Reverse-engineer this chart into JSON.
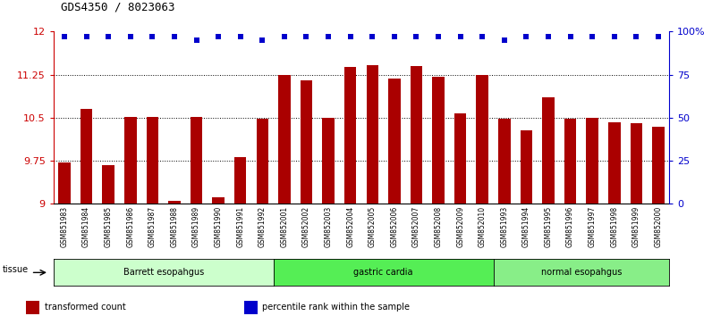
{
  "title": "GDS4350 / 8023063",
  "samples": [
    "GSM851983",
    "GSM851984",
    "GSM851985",
    "GSM851986",
    "GSM851987",
    "GSM851988",
    "GSM851989",
    "GSM851990",
    "GSM851991",
    "GSM851992",
    "GSM852001",
    "GSM852002",
    "GSM852003",
    "GSM852004",
    "GSM852005",
    "GSM852006",
    "GSM852007",
    "GSM852008",
    "GSM852009",
    "GSM852010",
    "GSM851993",
    "GSM851994",
    "GSM851995",
    "GSM851996",
    "GSM851997",
    "GSM851998",
    "GSM851999",
    "GSM852000"
  ],
  "bar_values": [
    9.72,
    10.65,
    9.67,
    10.52,
    10.52,
    9.05,
    10.52,
    9.12,
    9.82,
    10.48,
    11.25,
    11.15,
    10.5,
    11.38,
    11.42,
    11.18,
    11.4,
    11.22,
    10.58,
    11.25,
    10.48,
    10.28,
    10.85,
    10.48,
    10.5,
    10.42,
    10.4,
    10.35
  ],
  "percentile_values": [
    97,
    97,
    97,
    97,
    97,
    97,
    95,
    97,
    97,
    95,
    97,
    97,
    97,
    97,
    97,
    97,
    97,
    97,
    97,
    97,
    95,
    97,
    97,
    97,
    97,
    97,
    97,
    97
  ],
  "groups": [
    {
      "label": "Barrett esopahgus",
      "start": 0,
      "end": 10,
      "color": "#ccffcc"
    },
    {
      "label": "gastric cardia",
      "start": 10,
      "end": 20,
      "color": "#55ee55"
    },
    {
      "label": "normal esopahgus",
      "start": 20,
      "end": 28,
      "color": "#88ee88"
    }
  ],
  "bar_color": "#aa0000",
  "dot_color": "#0000cc",
  "ymin": 9.0,
  "ymax": 12.0,
  "y_ticks_left": [
    9.0,
    9.75,
    10.5,
    11.25,
    12.0
  ],
  "y_ticks_right_vals": [
    0,
    25,
    50,
    75,
    100
  ],
  "dotted_lines": [
    9.75,
    10.5,
    11.25
  ],
  "legend_items": [
    {
      "color": "#aa0000",
      "label": "transformed count"
    },
    {
      "color": "#0000cc",
      "label": "percentile rank within the sample"
    }
  ],
  "bg_color": "#ffffff",
  "tick_area_color": "#cccccc"
}
